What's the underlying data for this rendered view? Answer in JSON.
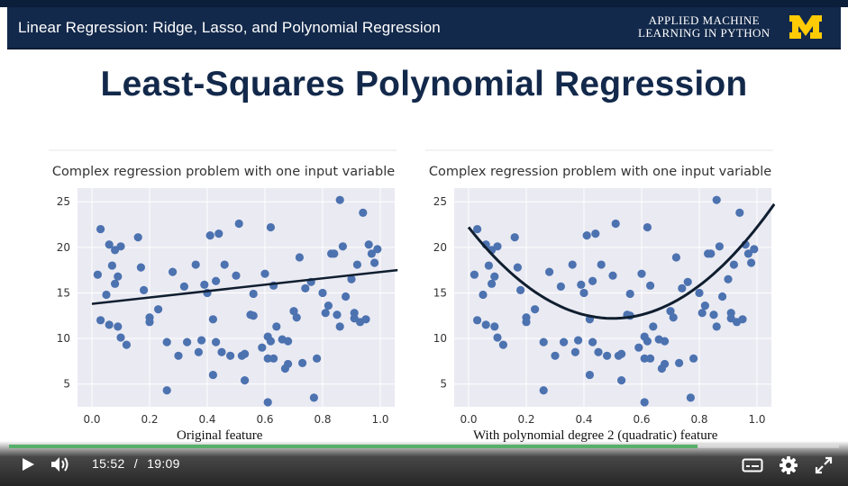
{
  "header": {
    "title": "Linear Regression: Ridge, Lasso, and Polynomial Regression",
    "brand_line1": "APPLIED MACHINE",
    "brand_line2": "LEARNING IN PYTHON",
    "logo_text": "M",
    "logo_color": "#ffcb05",
    "bar_color": "#13294b"
  },
  "slide": {
    "title": "Least-Squares Polynomial Regression"
  },
  "charts": [
    {
      "title": "Complex regression problem with one input variable",
      "caption": "Original feature",
      "fit": "linear",
      "fit_line": {
        "x0": 0.0,
        "y0": 13.8,
        "x1": 1.06,
        "y1": 17.5
      }
    },
    {
      "title": "Complex regression problem with one input variable",
      "caption": "With polynomial degree 2 (quadratic) feature",
      "fit": "quadratic",
      "fit_curve": {
        "a": 40.0,
        "h": 0.5,
        "k": 12.2
      }
    }
  ],
  "chart_data": [
    {
      "type": "scatter",
      "title": "Complex regression problem with one input variable",
      "xlabel": "Original feature",
      "ylabel": "",
      "xlim": [
        -0.05,
        1.05
      ],
      "ylim": [
        2.5,
        26.5
      ],
      "xticks": [
        "0.0",
        "0.2",
        "0.4",
        "0.6",
        "0.8",
        "1.0"
      ],
      "yticks": [
        "5",
        "10",
        "15",
        "20",
        "25"
      ],
      "series": [
        {
          "name": "data",
          "x": [
            0.02,
            0.03,
            0.03,
            0.05,
            0.06,
            0.06,
            0.07,
            0.08,
            0.08,
            0.09,
            0.09,
            0.1,
            0.1,
            0.12,
            0.16,
            0.17,
            0.18,
            0.2,
            0.2,
            0.23,
            0.26,
            0.26,
            0.28,
            0.3,
            0.32,
            0.33,
            0.36,
            0.37,
            0.38,
            0.39,
            0.4,
            0.41,
            0.42,
            0.42,
            0.43,
            0.43,
            0.44,
            0.45,
            0.46,
            0.48,
            0.5,
            0.51,
            0.52,
            0.53,
            0.53,
            0.55,
            0.56,
            0.56,
            0.59,
            0.6,
            0.61,
            0.61,
            0.61,
            0.62,
            0.62,
            0.63,
            0.63,
            0.64,
            0.66,
            0.67,
            0.68,
            0.68,
            0.7,
            0.71,
            0.72,
            0.73,
            0.74,
            0.76,
            0.77,
            0.78,
            0.8,
            0.81,
            0.82,
            0.83,
            0.84,
            0.85,
            0.86,
            0.86,
            0.87,
            0.88,
            0.9,
            0.91,
            0.91,
            0.92,
            0.93,
            0.94,
            0.95,
            0.96,
            0.97,
            0.98,
            0.99
          ],
          "y": [
            17.0,
            12.0,
            22.0,
            14.8,
            11.5,
            20.3,
            18.0,
            19.7,
            16.0,
            11.3,
            16.8,
            20.1,
            10.1,
            9.3,
            21.1,
            17.8,
            15.3,
            12.3,
            11.8,
            13.2,
            4.3,
            9.6,
            17.3,
            8.1,
            15.7,
            9.6,
            18.1,
            8.5,
            9.8,
            15.9,
            15.0,
            21.3,
            6.0,
            12.1,
            9.6,
            16.3,
            21.5,
            8.5,
            18.1,
            8.1,
            16.9,
            22.6,
            8.1,
            5.4,
            8.3,
            12.6,
            14.9,
            12.5,
            9.0,
            17.1,
            10.2,
            7.8,
            3.0,
            22.2,
            9.7,
            7.8,
            15.8,
            11.3,
            9.9,
            6.7,
            9.7,
            7.2,
            13.0,
            12.3,
            18.9,
            7.3,
            15.5,
            16.2,
            3.5,
            7.8,
            15.0,
            12.8,
            13.6,
            19.3,
            19.3,
            12.6,
            25.2,
            11.3,
            20.1,
            14.6,
            16.5,
            12.2,
            12.8,
            18.1,
            11.8,
            23.8,
            12.1,
            20.3,
            19.3,
            18.3,
            19.8
          ]
        }
      ],
      "fit_line": {
        "type": "linear",
        "x": [
          0.0,
          1.06
        ],
        "y": [
          13.8,
          17.5
        ]
      }
    },
    {
      "type": "scatter",
      "title": "Complex regression problem with one input variable",
      "xlabel": "With polynomial degree 2 (quadratic) feature",
      "ylabel": "",
      "xlim": [
        -0.05,
        1.05
      ],
      "ylim": [
        2.5,
        26.5
      ],
      "xticks": [
        "0.0",
        "0.2",
        "0.4",
        "0.6",
        "0.8",
        "1.0"
      ],
      "yticks": [
        "5",
        "10",
        "15",
        "20",
        "25"
      ],
      "series": [
        {
          "name": "data",
          "x": [
            0.02,
            0.03,
            0.03,
            0.05,
            0.06,
            0.06,
            0.07,
            0.08,
            0.08,
            0.09,
            0.09,
            0.1,
            0.1,
            0.12,
            0.16,
            0.17,
            0.18,
            0.2,
            0.2,
            0.23,
            0.26,
            0.26,
            0.28,
            0.3,
            0.32,
            0.33,
            0.36,
            0.37,
            0.38,
            0.39,
            0.4,
            0.41,
            0.42,
            0.42,
            0.43,
            0.43,
            0.44,
            0.45,
            0.46,
            0.48,
            0.5,
            0.51,
            0.52,
            0.53,
            0.53,
            0.55,
            0.56,
            0.56,
            0.59,
            0.6,
            0.61,
            0.61,
            0.61,
            0.62,
            0.62,
            0.63,
            0.63,
            0.64,
            0.66,
            0.67,
            0.68,
            0.68,
            0.7,
            0.71,
            0.72,
            0.73,
            0.74,
            0.76,
            0.77,
            0.78,
            0.8,
            0.81,
            0.82,
            0.83,
            0.84,
            0.85,
            0.86,
            0.86,
            0.87,
            0.88,
            0.9,
            0.91,
            0.91,
            0.92,
            0.93,
            0.94,
            0.95,
            0.96,
            0.97,
            0.98,
            0.99
          ],
          "y": [
            17.0,
            12.0,
            22.0,
            14.8,
            11.5,
            20.3,
            18.0,
            19.7,
            16.0,
            11.3,
            16.8,
            20.1,
            10.1,
            9.3,
            21.1,
            17.8,
            15.3,
            12.3,
            11.8,
            13.2,
            4.3,
            9.6,
            17.3,
            8.1,
            15.7,
            9.6,
            18.1,
            8.5,
            9.8,
            15.9,
            15.0,
            21.3,
            6.0,
            12.1,
            9.6,
            16.3,
            21.5,
            8.5,
            18.1,
            8.1,
            16.9,
            22.6,
            8.1,
            5.4,
            8.3,
            12.6,
            14.9,
            12.5,
            9.0,
            17.1,
            10.2,
            7.8,
            3.0,
            22.2,
            9.7,
            7.8,
            15.8,
            11.3,
            9.9,
            6.7,
            9.7,
            7.2,
            13.0,
            12.3,
            18.9,
            7.3,
            15.5,
            16.2,
            3.5,
            7.8,
            15.0,
            12.8,
            13.6,
            19.3,
            19.3,
            12.6,
            25.2,
            11.3,
            20.1,
            14.6,
            16.5,
            12.2,
            12.8,
            18.1,
            11.8,
            23.8,
            12.1,
            20.3,
            19.3,
            18.3,
            19.8
          ]
        }
      ],
      "fit_curve": {
        "type": "quadratic",
        "formula": "y = 40*(x-0.5)^2 + 12.2",
        "a": 40.0,
        "h": 0.5,
        "k": 12.2
      }
    }
  ],
  "player": {
    "current_time": "15:52",
    "duration": "19:09",
    "separator": "/",
    "progress": 0.829,
    "progress_color": "#56b06a"
  },
  "icons": {
    "play": "play-icon",
    "volume": "volume-icon",
    "captions": "captions-icon",
    "settings": "gear-icon",
    "fullscreen": "fullscreen-icon"
  }
}
